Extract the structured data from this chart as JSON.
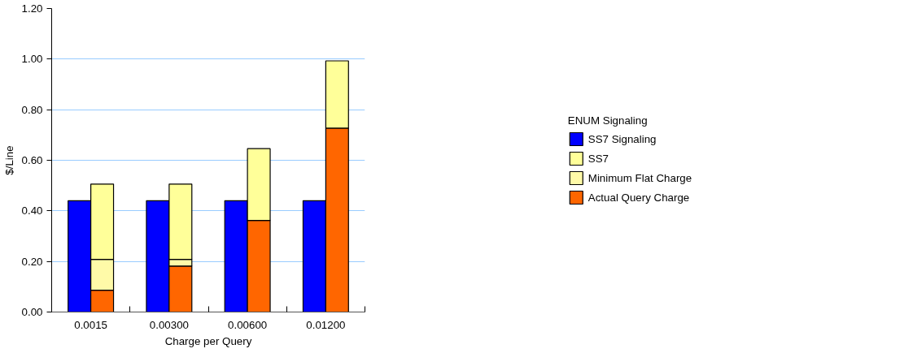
{
  "chart_data": {
    "type": "bar",
    "xlabel": "Charge per Query",
    "ylabel": "$/Line",
    "categories": [
      "0.0015",
      "0.00300",
      "0.00600",
      "0.01200"
    ],
    "legend": "right",
    "legend_title": "ENUM Signaling",
    "grid": "y",
    "ylim": [
      0,
      1.2
    ],
    "yticks": [
      {
        "value": 0,
        "label": "0.00"
      },
      {
        "value": 0.2,
        "label": "0.20"
      },
      {
        "value": 0.4,
        "label": "0.40"
      },
      {
        "value": 0.6,
        "label": "0.60"
      },
      {
        "value": 0.8,
        "label": "0.80"
      },
      {
        "value": 1.0,
        "label": "1.00"
      },
      {
        "value": 1.2,
        "label": "1.20"
      }
    ],
    "series": [
      {
        "name": "SS7 Signaling",
        "color": "#0000ff",
        "values": [
          0.44,
          0.44,
          0.44,
          0.44
        ]
      },
      {
        "name": "Actual Query Charge",
        "color": "#ff6600",
        "base": [
          0,
          0,
          0,
          0
        ],
        "values": [
          0.086,
          0.182,
          0.362,
          0.727
        ]
      },
      {
        "name": "Minimum Flat Charge",
        "color": "#fffaa8",
        "base": [
          0.086,
          0.182,
          null,
          null
        ],
        "values": [
          0.122,
          0.026,
          null,
          null
        ]
      },
      {
        "name": "SS7",
        "color": "#ffff99",
        "base": [
          0.208,
          0.208,
          0.362,
          0.727
        ],
        "values": [
          0.298,
          0.298,
          0.284,
          0.266
        ]
      }
    ]
  }
}
